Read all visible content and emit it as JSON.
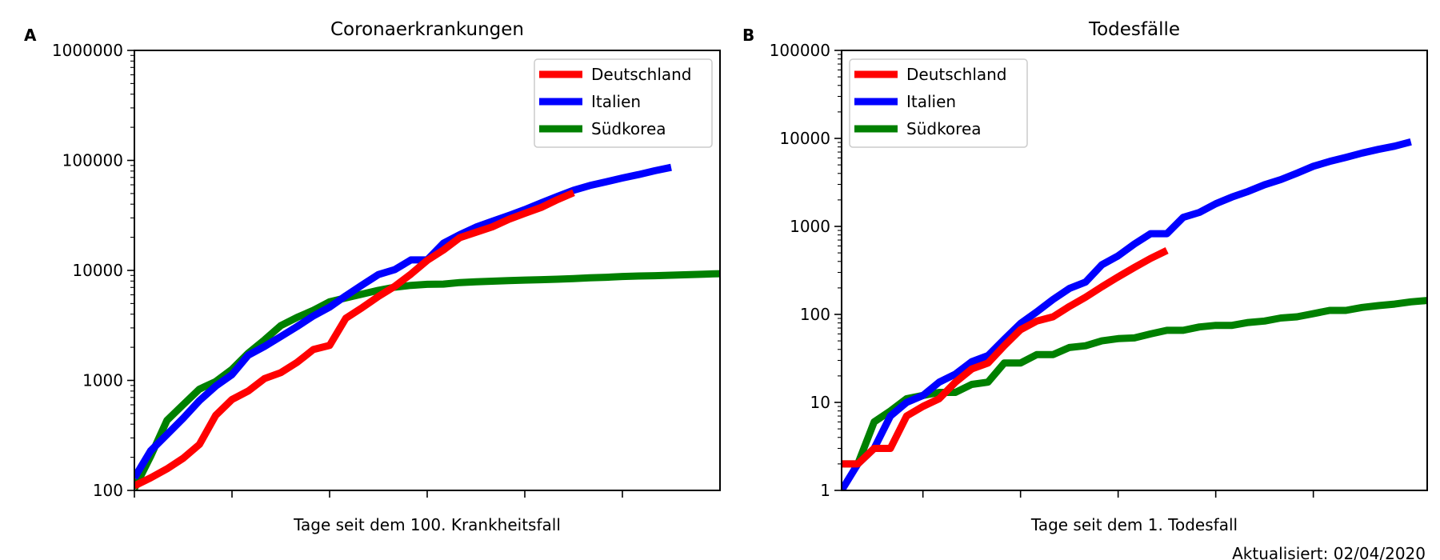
{
  "footer": {
    "updated": "Aktualisiert: 02/04/2020"
  },
  "chart_data": [
    {
      "type": "line",
      "panel": "A",
      "title": "Coronaerkrankungen",
      "xlabel": "Tage seit dem 100. Krankheitsfall",
      "ylabel": "",
      "yscale": "log",
      "ylim": [
        100,
        1000000
      ],
      "xlim": [
        0,
        36
      ],
      "yticks": [
        100,
        1000,
        10000,
        100000,
        1000000
      ],
      "ytick_labels": [
        "100",
        "1000",
        "10000",
        "100000",
        "1000000"
      ],
      "xticks": [
        0,
        6,
        12,
        18,
        24,
        30
      ],
      "legend": {
        "position": "upper right",
        "entries": [
          "Deutschland",
          "Italien",
          "Südkorea"
        ]
      },
      "colors": {
        "Deutschland": "#ff0000",
        "Italien": "#0000ff",
        "Südkorea": "#008000"
      },
      "grid": false,
      "series": [
        {
          "name": "Deutschland",
          "x": [
            0,
            1,
            2,
            3,
            4,
            5,
            6,
            7,
            8,
            9,
            10,
            11,
            12,
            13,
            14,
            15,
            16,
            17,
            18,
            19,
            20,
            21,
            22,
            23,
            24,
            25,
            26,
            27
          ],
          "values": [
            110,
            130,
            157,
            196,
            262,
            482,
            670,
            800,
            1040,
            1176,
            1457,
            1908,
            2078,
            3675,
            4585,
            5795,
            7156,
            9257,
            12327,
            15320,
            19848,
            22213,
            24873,
            29056,
            32986,
            37323,
            43938,
            50871
          ]
        },
        {
          "name": "Italien",
          "x": [
            0,
            1,
            2,
            3,
            4,
            5,
            6,
            7,
            8,
            9,
            10,
            11,
            12,
            13,
            14,
            15,
            16,
            17,
            18,
            19,
            20,
            21,
            22,
            23,
            24,
            25,
            26,
            27,
            28,
            29,
            30,
            31,
            32,
            33
          ],
          "values": [
            130,
            229,
            322,
            453,
            655,
            888,
            1128,
            1694,
            2036,
            2502,
            3089,
            3858,
            4636,
            5883,
            7375,
            9172,
            10149,
            12462,
            12462,
            17660,
            21157,
            24747,
            27980,
            31506,
            35713,
            41035,
            47021,
            53578,
            59138,
            63927,
            69176,
            74386,
            80589,
            86498
          ]
        },
        {
          "name": "Südkorea",
          "x": [
            0,
            1,
            2,
            3,
            4,
            5,
            6,
            7,
            8,
            9,
            10,
            11,
            12,
            13,
            14,
            15,
            16,
            17,
            18,
            19,
            20,
            21,
            22,
            23,
            24,
            25,
            26,
            27,
            28,
            29,
            30,
            31,
            32,
            33,
            34,
            35,
            36
          ],
          "values": [
            104,
            204,
            433,
            602,
            833,
            977,
            1261,
            1766,
            2337,
            3150,
            3736,
            4335,
            5186,
            5621,
            6088,
            6593,
            7041,
            7313,
            7478,
            7513,
            7755,
            7869,
            7979,
            8086,
            8162,
            8236,
            8320,
            8413,
            8565,
            8652,
            8799,
            8897,
            8961,
            9037,
            9137,
            9241,
            9332
          ]
        }
      ]
    },
    {
      "type": "line",
      "panel": "B",
      "title": "Todesfälle",
      "xlabel": "Tage seit dem 1. Todesfall",
      "ylabel": "",
      "yscale": "log",
      "ylim": [
        1,
        100000
      ],
      "xlim": [
        0,
        36
      ],
      "yticks": [
        1,
        10,
        100,
        1000,
        10000,
        100000
      ],
      "ytick_labels": [
        "1",
        "10",
        "100",
        "1000",
        "10000",
        "100000"
      ],
      "xticks": [
        5,
        11,
        17,
        23,
        29
      ],
      "legend": {
        "position": "upper left",
        "entries": [
          "Deutschland",
          "Italien",
          "Südkorea"
        ]
      },
      "colors": {
        "Deutschland": "#ff0000",
        "Italien": "#0000ff",
        "Südkorea": "#008000"
      },
      "grid": false,
      "series": [
        {
          "name": "Deutschland",
          "x": [
            0,
            1,
            2,
            3,
            4,
            5,
            6,
            7,
            8,
            9,
            10,
            11,
            12,
            13,
            14,
            15,
            16,
            17,
            18,
            19,
            20
          ],
          "values": [
            2,
            2,
            3,
            3,
            7,
            9,
            11,
            17,
            24,
            28,
            44,
            67,
            84,
            94,
            123,
            157,
            206,
            267,
            342,
            433,
            533
          ]
        },
        {
          "name": "Italien",
          "x": [
            0,
            1,
            2,
            3,
            4,
            5,
            6,
            7,
            8,
            9,
            10,
            11,
            12,
            13,
            14,
            15,
            16,
            17,
            18,
            19,
            20,
            21,
            22,
            23,
            24,
            25,
            26,
            27,
            28,
            29,
            30,
            31,
            32,
            33,
            34,
            35
          ],
          "values": [
            1,
            2,
            3,
            7,
            10,
            12,
            17,
            21,
            29,
            34,
            52,
            79,
            107,
            148,
            197,
            233,
            366,
            463,
            631,
            827,
            827,
            1266,
            1441,
            1809,
            2158,
            2503,
            2978,
            3405,
            4032,
            4825,
            5476,
            6077,
            6820,
            7503,
            8165,
            9134
          ]
        },
        {
          "name": "Südkorea",
          "x": [
            0,
            1,
            2,
            3,
            4,
            5,
            6,
            7,
            8,
            9,
            10,
            11,
            12,
            13,
            14,
            15,
            16,
            17,
            18,
            19,
            20,
            21,
            22,
            23,
            24,
            25,
            26,
            27,
            28,
            29,
            30,
            31,
            32,
            33,
            34,
            35,
            36
          ],
          "values": [
            2,
            2,
            6,
            8,
            11,
            12,
            13,
            13,
            16,
            17,
            28,
            28,
            35,
            35,
            42,
            44,
            50,
            53,
            54,
            60,
            66,
            66,
            72,
            75,
            75,
            81,
            84,
            91,
            94,
            102,
            111,
            111,
            120,
            126,
            131,
            139,
            144
          ]
        }
      ]
    }
  ]
}
